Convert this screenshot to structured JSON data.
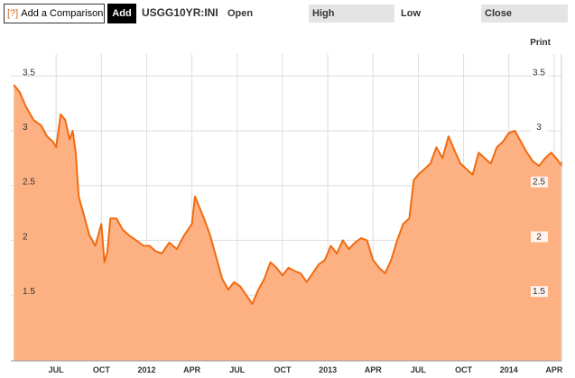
{
  "toolbar": {
    "help_glyph": "[?]",
    "compare_placeholder": "Add a Comparison",
    "add_label": "Add",
    "ticker": "USGG10YR:INI",
    "open_label": "Open",
    "high_label": "High",
    "low_label": "Low",
    "close_label": "Close"
  },
  "print_label": "Print",
  "colors": {
    "fill": "#fdb183",
    "line": "#f26a0f",
    "grid": "#dddddd"
  },
  "chart_data": {
    "type": "area",
    "y_ticks": [
      "3.5",
      "3",
      "2.5",
      "2",
      "1.5"
    ],
    "y_tick_values": [
      3.5,
      3.0,
      2.5,
      2.0,
      1.5
    ],
    "x_tick_labels": [
      "JUL",
      "OCT",
      "2012",
      "APR",
      "JUL",
      "OCT",
      "2013",
      "APR",
      "JUL",
      "OCT",
      "2014",
      "APR"
    ],
    "ylim": [
      0.9,
      3.7
    ],
    "x_range": [
      0,
      36
    ],
    "x_tick_positions": [
      3,
      6,
      9,
      12,
      15,
      18,
      21,
      24,
      27,
      30,
      33,
      36
    ],
    "grid": true,
    "points": [
      [
        0.2,
        3.42
      ],
      [
        0.6,
        3.35
      ],
      [
        1.0,
        3.22
      ],
      [
        1.5,
        3.1
      ],
      [
        2.0,
        3.05
      ],
      [
        2.4,
        2.95
      ],
      [
        2.8,
        2.9
      ],
      [
        3.0,
        2.85
      ],
      [
        3.3,
        3.15
      ],
      [
        3.6,
        3.1
      ],
      [
        3.9,
        2.92
      ],
      [
        4.1,
        3.0
      ],
      [
        4.3,
        2.8
      ],
      [
        4.5,
        2.4
      ],
      [
        4.8,
        2.25
      ],
      [
        5.2,
        2.05
      ],
      [
        5.6,
        1.95
      ],
      [
        6.0,
        2.15
      ],
      [
        6.2,
        1.8
      ],
      [
        6.4,
        1.9
      ],
      [
        6.6,
        2.2
      ],
      [
        7.0,
        2.2
      ],
      [
        7.4,
        2.1
      ],
      [
        7.8,
        2.05
      ],
      [
        8.3,
        2.0
      ],
      [
        8.8,
        1.95
      ],
      [
        9.2,
        1.95
      ],
      [
        9.6,
        1.9
      ],
      [
        10.0,
        1.88
      ],
      [
        10.5,
        1.98
      ],
      [
        11.0,
        1.92
      ],
      [
        11.5,
        2.05
      ],
      [
        12.0,
        2.15
      ],
      [
        12.2,
        2.4
      ],
      [
        12.5,
        2.3
      ],
      [
        12.8,
        2.2
      ],
      [
        13.2,
        2.05
      ],
      [
        13.6,
        1.85
      ],
      [
        14.0,
        1.65
      ],
      [
        14.4,
        1.55
      ],
      [
        14.8,
        1.62
      ],
      [
        15.2,
        1.58
      ],
      [
        15.6,
        1.5
      ],
      [
        16.0,
        1.42
      ],
      [
        16.4,
        1.55
      ],
      [
        16.8,
        1.65
      ],
      [
        17.2,
        1.8
      ],
      [
        17.6,
        1.75
      ],
      [
        18.0,
        1.68
      ],
      [
        18.4,
        1.75
      ],
      [
        18.8,
        1.72
      ],
      [
        19.2,
        1.7
      ],
      [
        19.6,
        1.62
      ],
      [
        20.0,
        1.7
      ],
      [
        20.4,
        1.78
      ],
      [
        20.8,
        1.82
      ],
      [
        21.2,
        1.95
      ],
      [
        21.6,
        1.88
      ],
      [
        22.0,
        2.0
      ],
      [
        22.4,
        1.92
      ],
      [
        22.8,
        1.98
      ],
      [
        23.2,
        2.02
      ],
      [
        23.6,
        2.0
      ],
      [
        24.0,
        1.82
      ],
      [
        24.4,
        1.75
      ],
      [
        24.8,
        1.7
      ],
      [
        25.2,
        1.82
      ],
      [
        25.6,
        2.0
      ],
      [
        26.0,
        2.15
      ],
      [
        26.4,
        2.2
      ],
      [
        26.7,
        2.55
      ],
      [
        27.0,
        2.6
      ],
      [
        27.4,
        2.65
      ],
      [
        27.8,
        2.7
      ],
      [
        28.2,
        2.85
      ],
      [
        28.6,
        2.75
      ],
      [
        29.0,
        2.95
      ],
      [
        29.4,
        2.82
      ],
      [
        29.8,
        2.7
      ],
      [
        30.2,
        2.65
      ],
      [
        30.6,
        2.6
      ],
      [
        31.0,
        2.8
      ],
      [
        31.4,
        2.75
      ],
      [
        31.8,
        2.7
      ],
      [
        32.2,
        2.85
      ],
      [
        32.6,
        2.9
      ],
      [
        33.0,
        2.98
      ],
      [
        33.4,
        3.0
      ],
      [
        33.8,
        2.9
      ],
      [
        34.2,
        2.8
      ],
      [
        34.6,
        2.72
      ],
      [
        35.0,
        2.68
      ],
      [
        35.4,
        2.75
      ],
      [
        35.8,
        2.8
      ],
      [
        36.2,
        2.74
      ],
      [
        36.6,
        2.68
      ],
      [
        37.0,
        2.72
      ]
    ]
  }
}
